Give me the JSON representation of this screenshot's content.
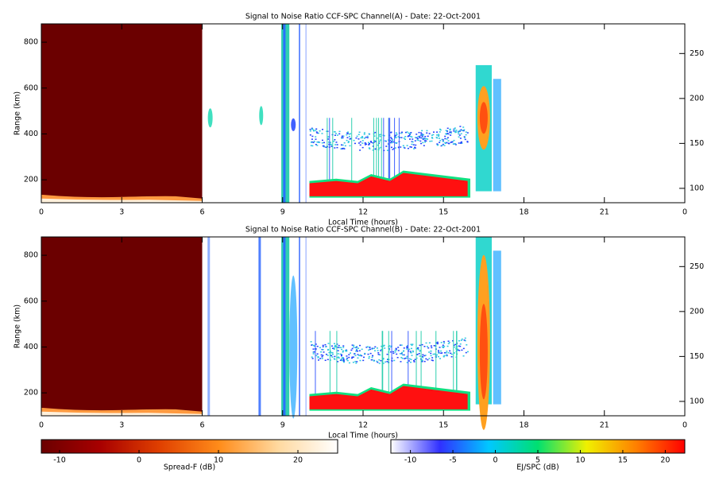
{
  "chart_data": [
    {
      "type": "heatmap",
      "title": "Signal to Noise Ratio CCF-SPC Channel(A) - Date: 22-Oct-2001",
      "x_label": "Local Time (hours)",
      "y_label": "Range (km)",
      "xlim": [
        0,
        24
      ],
      "xticks": [
        0,
        3,
        6,
        9,
        12,
        15,
        18,
        21,
        {
          "value": 24,
          "label": "0"
        }
      ],
      "ylim": [
        100,
        880
      ],
      "yticks": [
        200,
        400,
        600,
        800
      ],
      "y2lim": [
        84,
        283
      ],
      "y2ticks": [
        100,
        150,
        200,
        250
      ]
    },
    {
      "type": "heatmap",
      "title": "Signal to Noise Ratio CCF-SPC Channel(B) - Date: 22-Oct-2001",
      "x_label": "Local Time (hours)",
      "y_label": "Range (km)",
      "xlim": [
        0,
        24
      ],
      "xticks": [
        0,
        3,
        6,
        9,
        12,
        15,
        18,
        21,
        {
          "value": 24,
          "label": "0"
        }
      ],
      "ylim": [
        100,
        880
      ],
      "yticks": [
        200,
        400,
        600,
        800
      ],
      "y2lim": [
        84,
        283
      ],
      "y2ticks": [
        100,
        150,
        200,
        250
      ]
    }
  ],
  "colorbars": [
    {
      "label": "Spread-F (dB)",
      "xlim": [
        -12.3,
        25
      ],
      "xticks": [
        -10,
        0,
        10,
        20
      ],
      "colors": [
        "#6b0000",
        "#a80000",
        "#e04000",
        "#ff8c1a",
        "#ffd9a0",
        "#ffffff"
      ]
    },
    {
      "label": "EJ/SPC (dB)",
      "xlim": [
        -12.3,
        22.3
      ],
      "xticks": [
        -10,
        -5,
        0,
        5,
        10,
        15,
        20
      ],
      "colors": [
        "#ffffff",
        "#3030ff",
        "#00c8ff",
        "#00e070",
        "#f0f000",
        "#ff8000",
        "#ff0000"
      ]
    }
  ]
}
